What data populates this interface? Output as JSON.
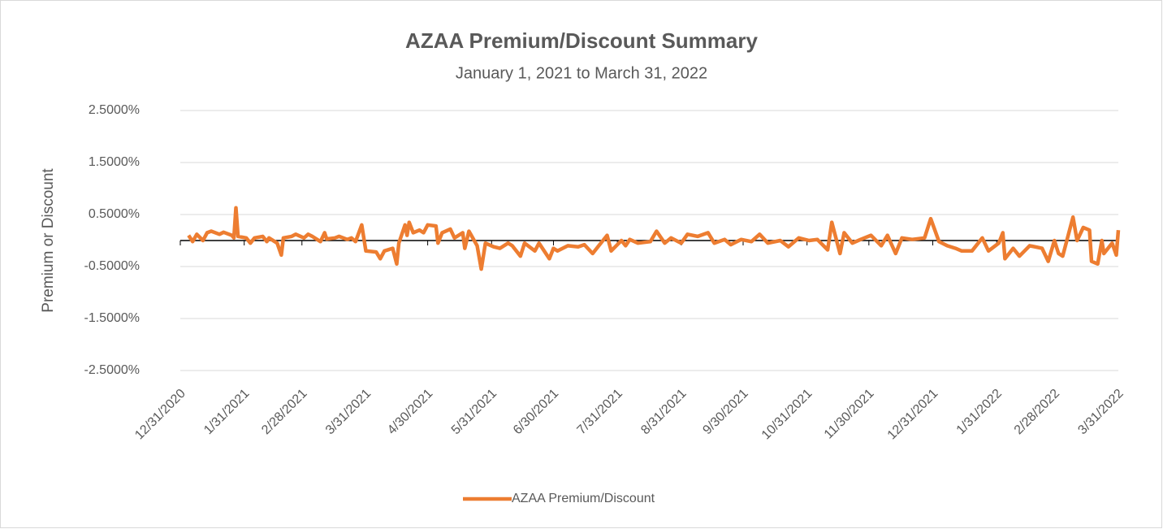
{
  "chart_data": {
    "type": "line",
    "title": "AZAA Premium/Discount Summary",
    "subtitle": "January 1, 2021 to March 31, 2022",
    "y_label": "Premium or Discount",
    "xlim": [
      "12/31/2020",
      "3/31/2022"
    ],
    "xticks": [
      "12/31/2020",
      "1/31/2021",
      "2/28/2021",
      "3/31/2021",
      "4/30/2021",
      "5/31/2021",
      "6/30/2021",
      "7/31/2021",
      "8/31/2021",
      "9/30/2021",
      "10/31/2021",
      "11/30/2021",
      "12/31/2021",
      "1/31/2022",
      "2/28/2022",
      "3/31/2022"
    ],
    "ylim": [
      -2.5,
      2.5
    ],
    "yticks": [
      {
        "value": 2.5,
        "label": "2.5000%"
      },
      {
        "value": 1.5,
        "label": "1.5000%"
      },
      {
        "value": 0.5,
        "label": "0.5000%"
      },
      {
        "value": -0.5,
        "label": "-0.5000%"
      },
      {
        "value": -1.5,
        "label": "-1.5000%"
      },
      {
        "value": -2.5,
        "label": "-2.5000%"
      }
    ],
    "grid": true,
    "legend": "bottom",
    "x": [
      "1/4/2021",
      "1/6/2021",
      "1/8/2021",
      "1/11/2021",
      "1/13/2021",
      "1/15/2021",
      "1/19/2021",
      "1/21/2021",
      "1/25/2021",
      "1/26/2021",
      "1/27/2021",
      "1/28/2021",
      "2/1/2021",
      "2/3/2021",
      "2/5/2021",
      "2/9/2021",
      "2/11/2021",
      "2/12/2021",
      "2/16/2021",
      "2/18/2021",
      "2/19/2021",
      "2/23/2021",
      "2/25/2021",
      "3/1/2021",
      "3/3/2021",
      "3/5/2021",
      "3/9/2021",
      "3/11/2021",
      "3/12/2021",
      "3/16/2021",
      "3/18/2021",
      "3/22/2021",
      "3/24/2021",
      "3/26/2021",
      "3/29/2021",
      "3/31/2021",
      "4/5/2021",
      "4/7/2021",
      "4/9/2021",
      "4/13/2021",
      "4/15/2021",
      "4/16/2021",
      "4/19/2021",
      "4/20/2021",
      "4/21/2021",
      "4/23/2021",
      "4/26/2021",
      "4/28/2021",
      "4/30/2021",
      "5/4/2021",
      "5/5/2021",
      "5/7/2021",
      "5/11/2021",
      "5/13/2021",
      "5/17/2021",
      "5/18/2021",
      "5/20/2021",
      "5/24/2021",
      "5/26/2021",
      "5/28/2021",
      "6/1/2021",
      "6/4/2021",
      "6/8/2021",
      "6/10/2021",
      "6/14/2021",
      "6/16/2021",
      "6/21/2021",
      "6/23/2021",
      "6/28/2021",
      "6/30/2021",
      "7/2/2021",
      "7/7/2021",
      "7/12/2021",
      "7/15/2021",
      "7/19/2021",
      "7/22/2021",
      "7/26/2021",
      "7/28/2021",
      "8/2/2021",
      "8/4/2021",
      "8/6/2021",
      "8/10/2021",
      "8/16/2021",
      "8/19/2021",
      "8/23/2021",
      "8/26/2021",
      "8/31/2021",
      "9/3/2021",
      "9/8/2021",
      "9/13/2021",
      "9/16/2021",
      "9/21/2021",
      "9/24/2021",
      "9/29/2021",
      "10/4/2021",
      "10/8/2021",
      "10/12/2021",
      "10/18/2021",
      "10/22/2021",
      "10/27/2021",
      "11/1/2021",
      "11/5/2021",
      "11/10/2021",
      "11/12/2021",
      "11/16/2021",
      "11/18/2021",
      "11/22/2021",
      "11/26/2021",
      "12/1/2021",
      "12/6/2021",
      "12/9/2021",
      "12/13/2021",
      "12/16/2021",
      "12/21/2021",
      "12/27/2021",
      "12/30/2021",
      "1/3/2022",
      "1/7/2022",
      "1/11/2022",
      "1/14/2022",
      "1/19/2022",
      "1/24/2022",
      "1/27/2022",
      "2/1/2022",
      "2/3/2022",
      "2/4/2022",
      "2/8/2022",
      "2/11/2022",
      "2/16/2022",
      "2/22/2022",
      "2/25/2022",
      "2/28/2022",
      "3/2/2022",
      "3/4/2022",
      "3/9/2022",
      "3/11/2022",
      "3/14/2022",
      "3/17/2022",
      "3/18/2022",
      "3/21/2022",
      "3/23/2022",
      "3/24/2022",
      "3/28/2022",
      "3/30/2022",
      "3/31/2022"
    ],
    "series": [
      {
        "name": "AZAA Premium/Discount",
        "color": "#ed7d31",
        "values": [
          0.1,
          -0.02,
          0.12,
          0.0,
          0.15,
          0.18,
          0.12,
          0.16,
          0.1,
          0.05,
          0.63,
          0.08,
          0.05,
          -0.05,
          0.05,
          0.08,
          -0.02,
          0.05,
          -0.05,
          -0.28,
          0.05,
          0.08,
          0.12,
          0.05,
          0.12,
          0.08,
          -0.02,
          0.15,
          0.03,
          0.05,
          0.08,
          0.02,
          0.05,
          -0.02,
          0.3,
          -0.2,
          -0.22,
          -0.35,
          -0.2,
          -0.15,
          -0.45,
          -0.05,
          0.3,
          0.1,
          0.35,
          0.15,
          0.2,
          0.15,
          0.3,
          0.28,
          -0.05,
          0.15,
          0.22,
          0.05,
          0.15,
          -0.15,
          0.18,
          -0.1,
          -0.55,
          -0.05,
          -0.12,
          -0.15,
          -0.05,
          -0.1,
          -0.3,
          -0.05,
          -0.2,
          -0.05,
          -0.35,
          -0.15,
          -0.2,
          -0.1,
          -0.12,
          -0.08,
          -0.25,
          -0.1,
          0.1,
          -0.2,
          0.0,
          -0.1,
          0.02,
          -0.05,
          -0.02,
          0.18,
          -0.05,
          0.05,
          -0.05,
          0.12,
          0.08,
          0.15,
          -0.05,
          0.02,
          -0.08,
          0.02,
          -0.02,
          0.12,
          -0.05,
          0.0,
          -0.12,
          0.05,
          0.0,
          0.02,
          -0.18,
          0.35,
          -0.25,
          0.15,
          -0.05,
          0.02,
          0.1,
          -0.1,
          0.1,
          -0.25,
          0.05,
          0.02,
          0.05,
          0.42,
          -0.02,
          -0.1,
          -0.15,
          -0.2,
          -0.2,
          0.05,
          -0.2,
          -0.05,
          0.15,
          -0.35,
          -0.15,
          -0.3,
          -0.1,
          -0.15,
          -0.4,
          0.0,
          -0.25,
          -0.3,
          0.45,
          0.0,
          0.25,
          0.2,
          -0.4,
          -0.45,
          0.0,
          -0.25,
          -0.05,
          -0.28,
          0.2
        ]
      }
    ]
  }
}
